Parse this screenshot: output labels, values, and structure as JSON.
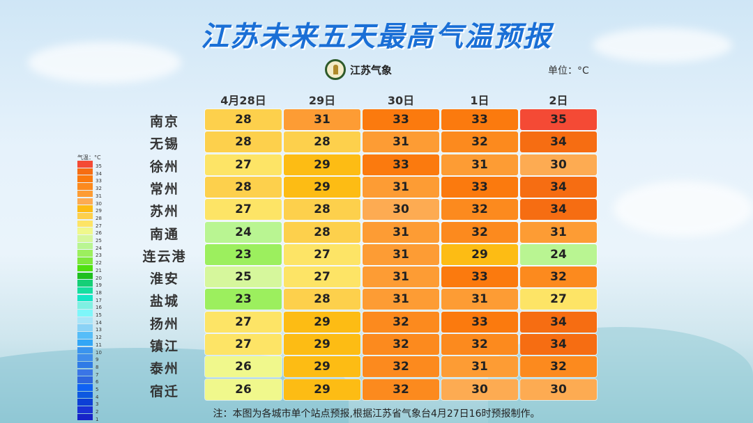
{
  "title": "江苏未来五天最高气温预报",
  "logo_text": "江苏气象",
  "unit": "单位：°C",
  "dates": [
    "4月28日",
    "29日",
    "30日",
    "1日",
    "2日"
  ],
  "rows": [
    {
      "city": "南京",
      "temps": [
        28,
        31,
        33,
        33,
        35
      ]
    },
    {
      "city": "无锡",
      "temps": [
        28,
        28,
        31,
        32,
        34
      ]
    },
    {
      "city": "徐州",
      "temps": [
        27,
        29,
        33,
        31,
        30
      ]
    },
    {
      "city": "常州",
      "temps": [
        28,
        29,
        31,
        33,
        34
      ]
    },
    {
      "city": "苏州",
      "temps": [
        27,
        28,
        30,
        32,
        34
      ]
    },
    {
      "city": "南通",
      "temps": [
        24,
        28,
        31,
        32,
        31
      ]
    },
    {
      "city": "连云港",
      "temps": [
        23,
        27,
        31,
        29,
        24
      ]
    },
    {
      "city": "淮安",
      "temps": [
        25,
        27,
        31,
        33,
        32
      ]
    },
    {
      "city": "盐城",
      "temps": [
        23,
        28,
        31,
        31,
        27
      ]
    },
    {
      "city": "扬州",
      "temps": [
        27,
        29,
        32,
        33,
        34
      ]
    },
    {
      "city": "镇江",
      "temps": [
        27,
        29,
        32,
        32,
        34
      ]
    },
    {
      "city": "泰州",
      "temps": [
        26,
        29,
        32,
        31,
        32
      ]
    },
    {
      "city": "宿迁",
      "temps": [
        26,
        29,
        32,
        30,
        30
      ]
    }
  ],
  "legend": {
    "title": "气温：°C",
    "colors": {
      "35": "#f44a35",
      "34": "#f66d12",
      "33": "#fb7a0e",
      "32": "#fc8a1e",
      "31": "#fd9c34",
      "30": "#fdab52",
      "29": "#fdbc14",
      "28": "#fdd04c",
      "27": "#fde466",
      "26": "#f0f88c",
      "25": "#d6f79c",
      "24": "#b9f592",
      "23": "#9cef5e",
      "22": "#7ee83c",
      "21": "#4fe010",
      "20": "#1fbf1f",
      "19": "#15cf77",
      "18": "#16dfa0",
      "17": "#16e6c6",
      "16": "#7ef0e2",
      "15": "#7ef6fa",
      "14": "#a8e4f8",
      "13": "#8ad2f6",
      "12": "#56bdf8",
      "11": "#33a6f6",
      "10": "#3a94ee",
      "9": "#3f8ceb",
      "8": "#2f7be6",
      "7": "#3a75e6",
      "6": "#2e66df",
      "5": "#0f62f4",
      "4": "#0d58e0",
      "3": "#0c3fd6",
      "2": "#1a32d6",
      "1": "#1624c8"
    }
  },
  "footer": "注：本图为各城市单个站点预报,根据江苏省气象台4月27日16时预报制作。"
}
